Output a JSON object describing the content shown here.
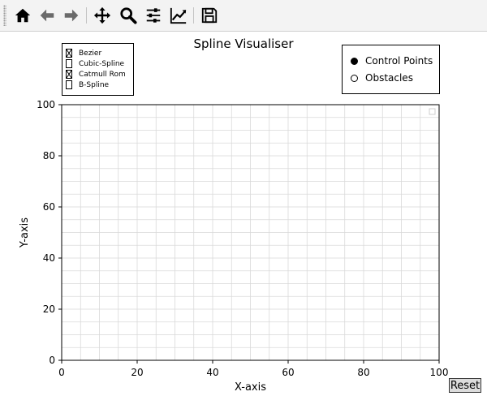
{
  "toolbar": {
    "buttons": [
      {
        "icon": "home-icon"
      },
      {
        "icon": "back-arrow-icon"
      },
      {
        "icon": "forward-arrow-icon"
      },
      {
        "icon": "pan-icon"
      },
      {
        "icon": "zoom-icon"
      },
      {
        "icon": "subplots-sliders-icon"
      },
      {
        "icon": "edit-axis-icon"
      },
      {
        "icon": "save-icon"
      }
    ]
  },
  "figure": {
    "title": "Spline Visualiser"
  },
  "check_panel": {
    "items": [
      {
        "label": "Bezier",
        "checked": true
      },
      {
        "label": "Cubic-Spline",
        "checked": false
      },
      {
        "label": "Catmull Rom",
        "checked": true
      },
      {
        "label": "B-Spline",
        "checked": false
      }
    ]
  },
  "radio_panel": {
    "items": [
      {
        "label": "Control Points",
        "selected": true
      },
      {
        "label": "Obstacles",
        "selected": false
      }
    ]
  },
  "reset_label": "Reset",
  "chart_data": {
    "type": "scatter",
    "title": "Spline Visualiser",
    "xlabel": "X-axis",
    "ylabel": "Y-axis",
    "xlim": [
      0,
      100
    ],
    "ylim": [
      0,
      100
    ],
    "xticks": [
      "0",
      "20",
      "40",
      "60",
      "80",
      "100"
    ],
    "yticks": [
      "0",
      "20",
      "40",
      "60",
      "80",
      "100"
    ],
    "minor_grid_step": 5,
    "grid": true,
    "series": [],
    "legend": "top-right",
    "colors": {
      "grid": "#d9d9d9",
      "axis": "#000000"
    }
  }
}
